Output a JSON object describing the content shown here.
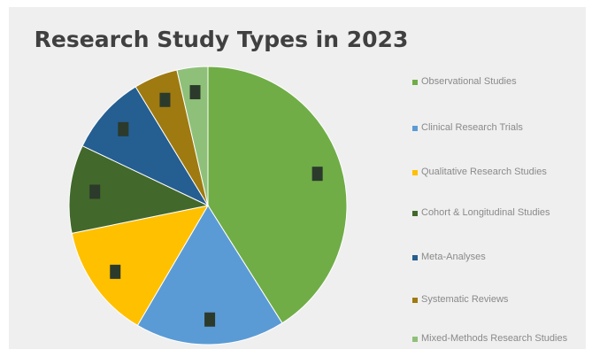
{
  "chart_data": {
    "type": "pie",
    "title": "Research Study Types in 2023",
    "legend_position": "right",
    "slices": [
      {
        "label": "",
        "value": 40,
        "color": "#70ad47",
        "data_label": "",
        "legend": "Observational Studies"
      },
      {
        "label": "",
        "value": 17,
        "color": "#5b9bd5",
        "data_label": "",
        "legend": "Clinical Research Trials"
      },
      {
        "label": "",
        "value": 13,
        "color": "#ffc000",
        "data_label": "",
        "legend": "Qualitative Research Studies"
      },
      {
        "label": "",
        "value": 10,
        "color": "#43682b",
        "data_label": "",
        "legend": "Cohort & Longitudinal Studies"
      },
      {
        "label": "",
        "value": 9,
        "color": "#255e91",
        "data_label": "",
        "legend": "Meta-Analyses"
      },
      {
        "label": "",
        "value": 5,
        "color": "#9e7a10",
        "data_label": "",
        "legend": "Systematic Reviews"
      },
      {
        "label": "",
        "value": 3.5,
        "color": "#8fc07a",
        "data_label": "",
        "legend": "Mixed-Methods Research Studies"
      }
    ]
  }
}
